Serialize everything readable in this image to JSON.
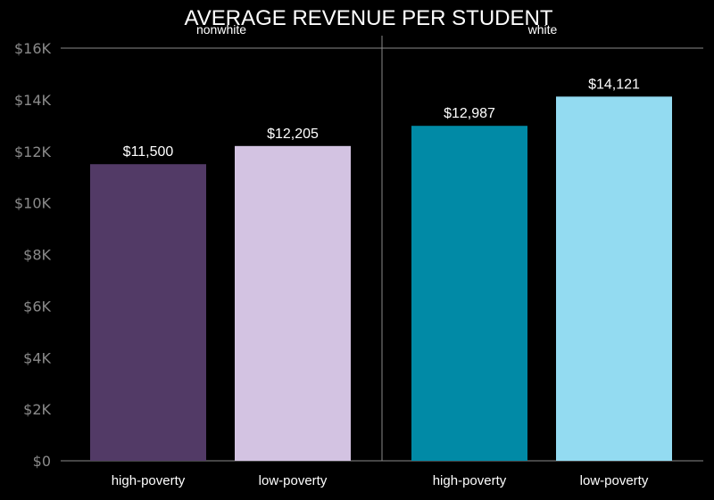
{
  "chart_data": {
    "type": "bar",
    "title": "AVERAGE REVENUE PER STUDENT",
    "xlabel": "",
    "ylabel": "",
    "ylim": [
      0,
      16000
    ],
    "y_ticks": [
      {
        "value": 0,
        "label": "$0"
      },
      {
        "value": 2000,
        "label": "$2K"
      },
      {
        "value": 4000,
        "label": "$4K"
      },
      {
        "value": 6000,
        "label": "$6K"
      },
      {
        "value": 8000,
        "label": "$8K"
      },
      {
        "value": 10000,
        "label": "$10K"
      },
      {
        "value": 12000,
        "label": "$12K"
      },
      {
        "value": 14000,
        "label": "$14K"
      },
      {
        "value": 16000,
        "label": "$16K"
      }
    ],
    "grid": false,
    "legend": "none",
    "panels": [
      {
        "name": "nonwhite",
        "categories": [
          "high-poverty",
          "low-poverty"
        ],
        "values": [
          11500,
          12205
        ],
        "value_labels": [
          "$11,500",
          "$12,205"
        ],
        "colors": [
          "#523a66",
          "#d3c3e2"
        ]
      },
      {
        "name": "white",
        "categories": [
          "high-poverty",
          "low-poverty"
        ],
        "values": [
          12987,
          14121
        ],
        "value_labels": [
          "$12,987",
          "$14,121"
        ],
        "colors": [
          "#018aa6",
          "#93dbf1"
        ]
      }
    ]
  }
}
